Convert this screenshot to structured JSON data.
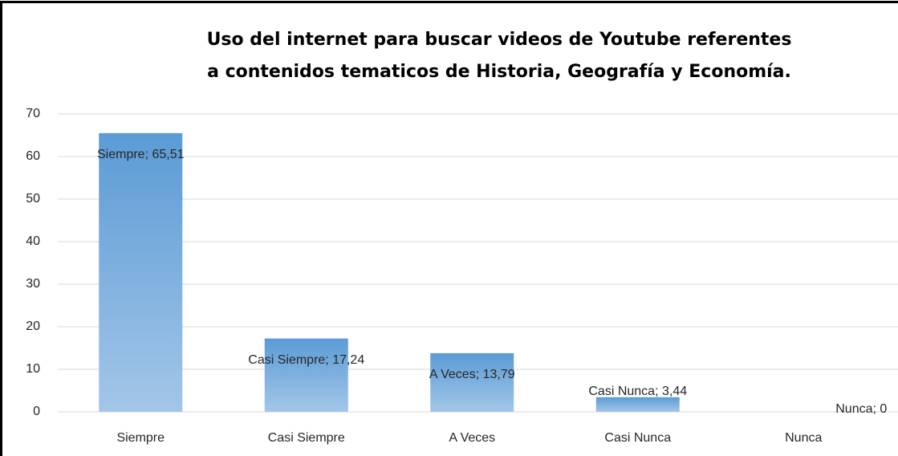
{
  "chart_data": {
    "type": "bar",
    "title": [
      "Uso del internet para buscar videos de Youtube referentes",
      "a contenidos tematicos de Historia, Geografía y Economía."
    ],
    "categories": [
      "Siempre",
      "Casi Siempre",
      "A Veces",
      "Casi Nunca",
      "Nunca"
    ],
    "values": [
      65.51,
      17.24,
      13.79,
      3.44,
      0
    ],
    "value_labels": [
      "Siempre; 65,51",
      "Casi Siempre; 17,24",
      "A Veces; 13,79",
      "Casi Nunca; 3,44",
      "Nunca; 0"
    ],
    "color": "#5b9bd5",
    "ylim": [
      0,
      70
    ],
    "yticks": [
      0,
      10,
      20,
      30,
      40,
      50,
      60,
      70
    ],
    "grid": true
  }
}
